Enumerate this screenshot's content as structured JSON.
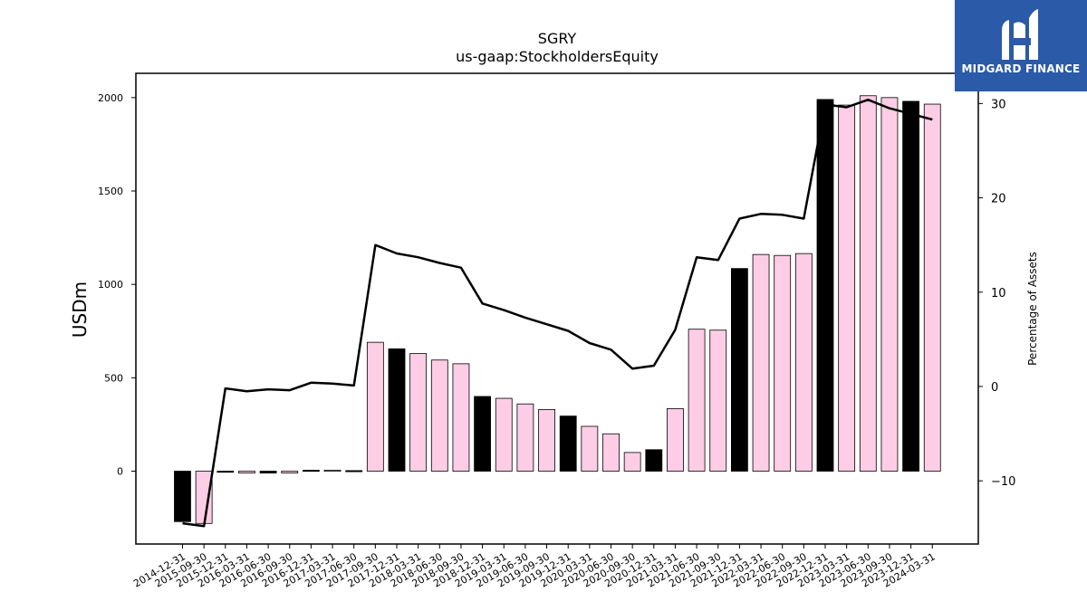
{
  "logo": {
    "text": "MIDGARD FINANCE"
  },
  "chart_data": {
    "type": "bar",
    "title": "SGRY",
    "subtitle": "us-gaap:StockholdersEquity",
    "ylabel": "USDm",
    "y2label": "Percentage of Assets",
    "ylim": [
      -390,
      2130
    ],
    "y2lim": [
      -16.7,
      33.2
    ],
    "yticks": [
      0,
      500,
      1000,
      1500,
      2000
    ],
    "y2ticks": [
      -10,
      0,
      10,
      20,
      30
    ],
    "categories": [
      "2014-12-31",
      "2015-09-30",
      "2015-12-31",
      "2016-03-31",
      "2016-06-30",
      "2016-09-30",
      "2016-12-31",
      "2017-03-31",
      "2017-06-30",
      "2017-09-30",
      "2017-12-31",
      "2018-03-31",
      "2018-06-30",
      "2018-09-30",
      "2018-12-31",
      "2019-03-31",
      "2019-06-30",
      "2019-09-30",
      "2019-12-31",
      "2020-03-31",
      "2020-06-30",
      "2020-09-30",
      "2020-12-31",
      "2021-03-31",
      "2021-06-30",
      "2021-09-30",
      "2021-12-31",
      "2022-03-31",
      "2022-06-30",
      "2022-09-30",
      "2022-12-31",
      "2023-03-31",
      "2023-06-30",
      "2023-09-30",
      "2023-12-31",
      "2024-03-31"
    ],
    "series": [
      {
        "type": "bar",
        "values": [
          -270,
          -280,
          -5,
          -10,
          -10,
          -10,
          5,
          5,
          3,
          690,
          655,
          630,
          595,
          575,
          400,
          390,
          360,
          330,
          295,
          240,
          200,
          100,
          115,
          335,
          760,
          755,
          1085,
          1160,
          1155,
          1165,
          1990,
          1960,
          2010,
          2000,
          1980,
          1965
        ],
        "highlight": [
          true,
          false,
          true,
          false,
          true,
          false,
          true,
          false,
          true,
          false,
          true,
          false,
          false,
          false,
          true,
          false,
          false,
          false,
          true,
          false,
          false,
          false,
          true,
          false,
          false,
          false,
          true,
          false,
          false,
          false,
          true,
          false,
          false,
          false,
          true,
          false
        ],
        "colors": {
          "highlight": "#000000",
          "normal": "#fccde5"
        }
      },
      {
        "type": "line",
        "axis": "y2",
        "values": [
          -14.5,
          -14.8,
          -0.2,
          -0.5,
          -0.3,
          -0.4,
          0.4,
          0.3,
          0.1,
          15.0,
          14.1,
          13.7,
          13.1,
          12.6,
          8.8,
          8.1,
          7.3,
          6.6,
          5.9,
          4.6,
          3.9,
          1.9,
          2.2,
          6.0,
          13.7,
          13.4,
          17.8,
          18.3,
          18.2,
          17.8,
          29.9,
          29.6,
          30.4,
          29.5,
          28.9,
          28.3
        ],
        "color": "#000000"
      }
    ]
  }
}
